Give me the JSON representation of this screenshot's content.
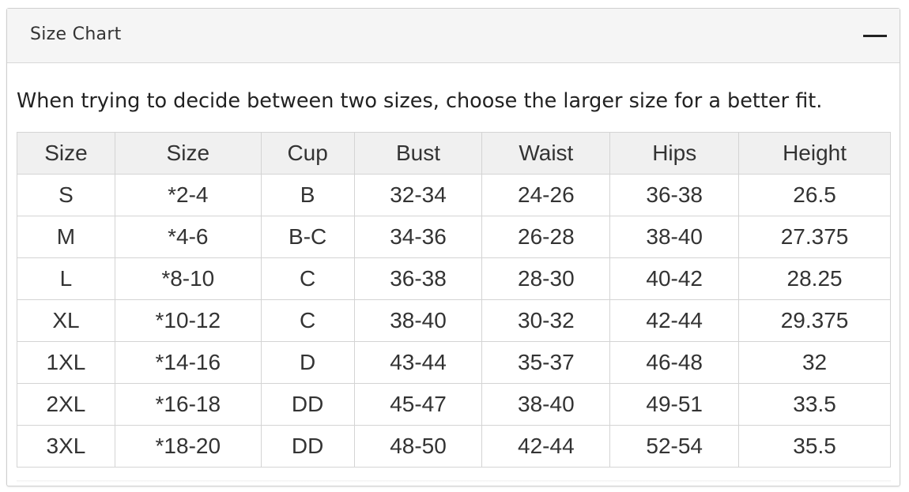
{
  "panel": {
    "title": "Size Chart",
    "collapse_icon": "minus-icon"
  },
  "note": "When trying to decide between two sizes, choose the larger size for a better fit.",
  "table": {
    "headers": [
      "Size",
      "Size",
      "Cup",
      "Bust",
      "Waist",
      "Hips",
      "Height"
    ],
    "rows": [
      [
        "S",
        "*2-4",
        "B",
        "32-34",
        "24-26",
        "36-38",
        "26.5"
      ],
      [
        "M",
        "*4-6",
        "B-C",
        "34-36",
        "26-28",
        "38-40",
        "27.375"
      ],
      [
        "L",
        "*8-10",
        "C",
        "36-38",
        "28-30",
        "40-42",
        "28.25"
      ],
      [
        "XL",
        "*10-12",
        "C",
        "38-40",
        "30-32",
        "42-44",
        "29.375"
      ],
      [
        "1XL",
        "*14-16",
        "D",
        "43-44",
        "35-37",
        "46-48",
        "32"
      ],
      [
        "2XL",
        "*16-18",
        "DD",
        "45-47",
        "38-40",
        "49-51",
        "33.5"
      ],
      [
        "3XL",
        "*18-20",
        "DD",
        "48-50",
        "42-44",
        "52-54",
        "35.5"
      ]
    ]
  },
  "colors": {
    "header_bg": "#f5f5f5",
    "table_header_bg": "#f0f0f0",
    "border": "#d4d4d4",
    "text": "#333333"
  }
}
